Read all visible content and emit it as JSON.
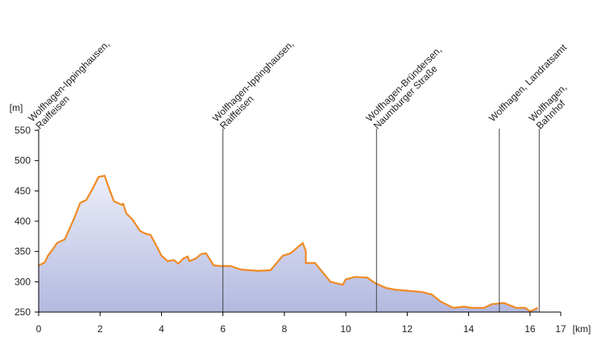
{
  "chart_data": {
    "type": "area",
    "ylabel": "[m]",
    "xlabel": "[km]",
    "xlim": [
      0,
      17
    ],
    "xticks": [
      0,
      2,
      4,
      6,
      8,
      10,
      12,
      14,
      16,
      17
    ],
    "ylim": [
      250,
      550
    ],
    "yticks": [
      250,
      300,
      350,
      400,
      450,
      500,
      550
    ],
    "line_color": "#f08a24",
    "fill_top": "#eceef8",
    "fill_bottom": "#b3b9e0",
    "stops": [
      {
        "x": 0,
        "lines": [
          "Wolfhagen-Ippinghausen,",
          "Raiffeisen"
        ]
      },
      {
        "x": 6,
        "lines": [
          "Wolfhagen-Ippinghausen,",
          "Raiffeisen"
        ]
      },
      {
        "x": 11,
        "lines": [
          "Wolfhagen-Bründersen,",
          "Naumburger Straße"
        ]
      },
      {
        "x": 15,
        "lines": [
          "Wolfhagen, Landratsamt"
        ]
      },
      {
        "x": 16.3,
        "lines": [
          "Wolfhagen,",
          "Bahnhof"
        ]
      }
    ],
    "x": [
      0,
      0.2,
      0.3,
      0.45,
      0.6,
      0.85,
      1.0,
      1.15,
      1.35,
      1.55,
      1.75,
      1.95,
      2.15,
      2.3,
      2.45,
      2.7,
      2.75,
      2.85,
      3.05,
      3.3,
      3.45,
      3.65,
      3.9,
      4.0,
      4.2,
      4.4,
      4.55,
      4.7,
      4.85,
      4.9,
      5.1,
      5.3,
      5.45,
      5.7,
      5.95,
      6.25,
      6.6,
      7.15,
      7.55,
      7.95,
      8.2,
      8.6,
      8.7,
      8.7,
      9.0,
      9.5,
      9.9,
      10.0,
      10.3,
      10.7,
      10.95,
      11.3,
      11.6,
      12.5,
      12.8,
      13.1,
      13.5,
      13.85,
      14.1,
      14.5,
      14.75,
      15.15,
      15.55,
      15.85,
      16.0,
      16.25
    ],
    "values": [
      327,
      332,
      343,
      353,
      364,
      370,
      387,
      404,
      430,
      435,
      453,
      473,
      475,
      453,
      433,
      427,
      429,
      413,
      403,
      384,
      380,
      377,
      353,
      343,
      334,
      336,
      330,
      338,
      342,
      334,
      338,
      346,
      347,
      327,
      326,
      326,
      320,
      318,
      319,
      343,
      347,
      364,
      350,
      331,
      331,
      300,
      295,
      304,
      308,
      307,
      298,
      290,
      287,
      283,
      279,
      267,
      257,
      259,
      257,
      257,
      263,
      265,
      257,
      257,
      251,
      257
    ]
  }
}
